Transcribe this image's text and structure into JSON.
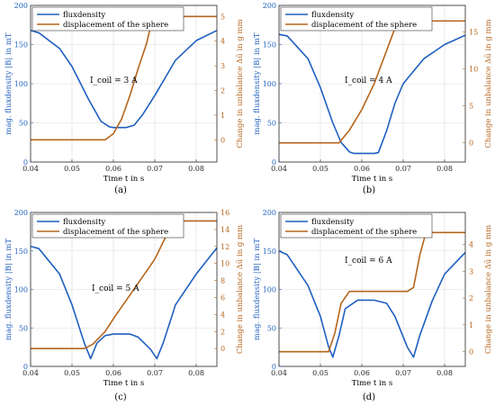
{
  "colors": {
    "fluxdensity": "#1f5fbf",
    "displacement": "#b5651d",
    "axis": "#262626",
    "grid": "#dcdcdc"
  },
  "chart_data": [
    {
      "type": "line",
      "panel": "(a)",
      "annotation": "I_coil = 3 A",
      "xlabel": "Time t in s",
      "ylabel": "mag. fluxdensity |B| in mT",
      "y2label": "Change in unbalance Δū in g mm",
      "xlim": [
        0.04,
        0.085
      ],
      "xticks": [
        "0.04",
        "0.05",
        "0.06",
        "0.07",
        "0.08"
      ],
      "ylim": [
        0,
        200
      ],
      "yticks": [
        "0",
        "50",
        "100",
        "150",
        "200"
      ],
      "y2lim": [
        -0.9,
        5.45
      ],
      "y2ticks": [
        "0",
        "1",
        "2",
        "3",
        "4",
        "5"
      ],
      "grid": true,
      "legend": "top-left",
      "series": [
        {
          "name": "fluxdensity",
          "axis": "left",
          "x": [
            0.04,
            0.042,
            0.047,
            0.05,
            0.054,
            0.057,
            0.059,
            0.06,
            0.063,
            0.065,
            0.067,
            0.07,
            0.075,
            0.08,
            0.085
          ],
          "y": [
            168,
            165,
            145,
            122,
            80,
            52,
            45,
            44,
            44,
            47,
            60,
            85,
            130,
            155,
            168
          ]
        },
        {
          "name": "displacement of the sphere",
          "axis": "right",
          "x": [
            0.04,
            0.058,
            0.06,
            0.062,
            0.064,
            0.066,
            0.068,
            0.069,
            0.07,
            0.085
          ],
          "y": [
            0,
            0,
            0.25,
            0.85,
            1.8,
            2.9,
            3.9,
            4.6,
            5.0,
            5.0
          ]
        }
      ]
    },
    {
      "type": "line",
      "panel": "(b)",
      "annotation": "I_coil = 4 A",
      "xlabel": "Time t in s",
      "ylabel": "mag. fluxdensity |B| in mT",
      "y2label": "Change in unbalance Δū in g mm",
      "xlim": [
        0.04,
        0.085
      ],
      "xticks": [
        "0.04",
        "0.05",
        "0.06",
        "0.07",
        "0.08"
      ],
      "ylim": [
        0,
        200
      ],
      "yticks": [
        "0",
        "50",
        "100",
        "150",
        "200"
      ],
      "y2lim": [
        -2.6,
        18.6
      ],
      "y2ticks": [
        "0",
        "5",
        "10",
        "15"
      ],
      "grid": true,
      "legend": "top-right",
      "series": [
        {
          "name": "fluxdensity",
          "axis": "left",
          "x": [
            0.04,
            0.042,
            0.047,
            0.05,
            0.053,
            0.055,
            0.057,
            0.058,
            0.06,
            0.063,
            0.064,
            0.066,
            0.068,
            0.07,
            0.075,
            0.08,
            0.085
          ],
          "y": [
            163,
            161,
            132,
            95,
            50,
            25,
            13,
            11,
            11,
            11,
            12,
            40,
            75,
            100,
            132,
            150,
            162
          ]
        },
        {
          "name": "displacement of the sphere",
          "axis": "right",
          "x": [
            0.04,
            0.0545,
            0.057,
            0.06,
            0.063,
            0.066,
            0.068,
            0.07,
            0.085
          ],
          "y": [
            0,
            0,
            1.7,
            4.5,
            8.0,
            12.5,
            15.5,
            16.5,
            16.5
          ]
        }
      ]
    },
    {
      "type": "line",
      "panel": "(c)",
      "annotation": "I_coil = 5 A",
      "xlabel": "Time t in s",
      "ylabel": "mag. fluxdensity |B| in mT",
      "y2label": "Change in unbalance Δū in g mm",
      "xlim": [
        0.04,
        0.085
      ],
      "xticks": [
        "0.04",
        "0.05",
        "0.06",
        "0.07",
        "0.08"
      ],
      "ylim": [
        0,
        200
      ],
      "yticks": [
        "0",
        "50",
        "100",
        "150",
        "200"
      ],
      "y2lim": [
        -2.1,
        16.0
      ],
      "y2ticks": [
        "0",
        "2",
        "4",
        "6",
        "8",
        "10",
        "12",
        "14",
        "16"
      ],
      "grid": true,
      "legend": "top-right",
      "series": [
        {
          "name": "fluxdensity",
          "axis": "left",
          "x": [
            0.04,
            0.042,
            0.047,
            0.05,
            0.053,
            0.0545,
            0.056,
            0.058,
            0.06,
            0.064,
            0.066,
            0.069,
            0.0705,
            0.072,
            0.075,
            0.08,
            0.085
          ],
          "y": [
            156,
            153,
            120,
            80,
            30,
            10,
            30,
            40,
            42,
            42,
            38,
            22,
            10,
            30,
            80,
            120,
            154
          ]
        },
        {
          "name": "displacement of the sphere",
          "axis": "right",
          "x": [
            0.04,
            0.053,
            0.055,
            0.058,
            0.06,
            0.065,
            0.07,
            0.073,
            0.075,
            0.085
          ],
          "y": [
            0,
            0,
            0.5,
            2.0,
            3.5,
            7.0,
            10.5,
            13.5,
            15.0,
            15.0
          ]
        }
      ]
    },
    {
      "type": "line",
      "panel": "(d)",
      "annotation": "I_coil = 6 A",
      "xlabel": "Time t in s",
      "ylabel": "mag. fluxdensity |B| in mT",
      "y2label": "Change in unbalance Δū in g mm",
      "xlim": [
        0.04,
        0.085
      ],
      "xticks": [
        "0.04",
        "0.05",
        "0.06",
        "0.07",
        "0.08"
      ],
      "ylim": [
        0,
        200
      ],
      "yticks": [
        "0",
        "50",
        "100",
        "150",
        "200"
      ],
      "y2lim": [
        -0.55,
        5.2
      ],
      "y2ticks": [
        "0",
        "1",
        "2",
        "3",
        "4"
      ],
      "grid": true,
      "legend": "top-right",
      "series": [
        {
          "name": "fluxdensity",
          "axis": "left",
          "x": [
            0.04,
            0.042,
            0.047,
            0.05,
            0.052,
            0.053,
            0.0545,
            0.056,
            0.059,
            0.063,
            0.066,
            0.068,
            0.071,
            0.0725,
            0.074,
            0.077,
            0.08,
            0.085
          ],
          "y": [
            150,
            145,
            105,
            65,
            25,
            12,
            40,
            75,
            86,
            86,
            82,
            65,
            25,
            12,
            40,
            85,
            120,
            148
          ]
        },
        {
          "name": "displacement of the sphere",
          "axis": "right",
          "x": [
            0.04,
            0.052,
            0.0535,
            0.055,
            0.057,
            0.071,
            0.0725,
            0.074,
            0.0755,
            0.085
          ],
          "y": [
            0,
            0,
            0.7,
            1.8,
            2.25,
            2.25,
            2.4,
            3.6,
            4.45,
            4.45
          ]
        }
      ]
    }
  ]
}
